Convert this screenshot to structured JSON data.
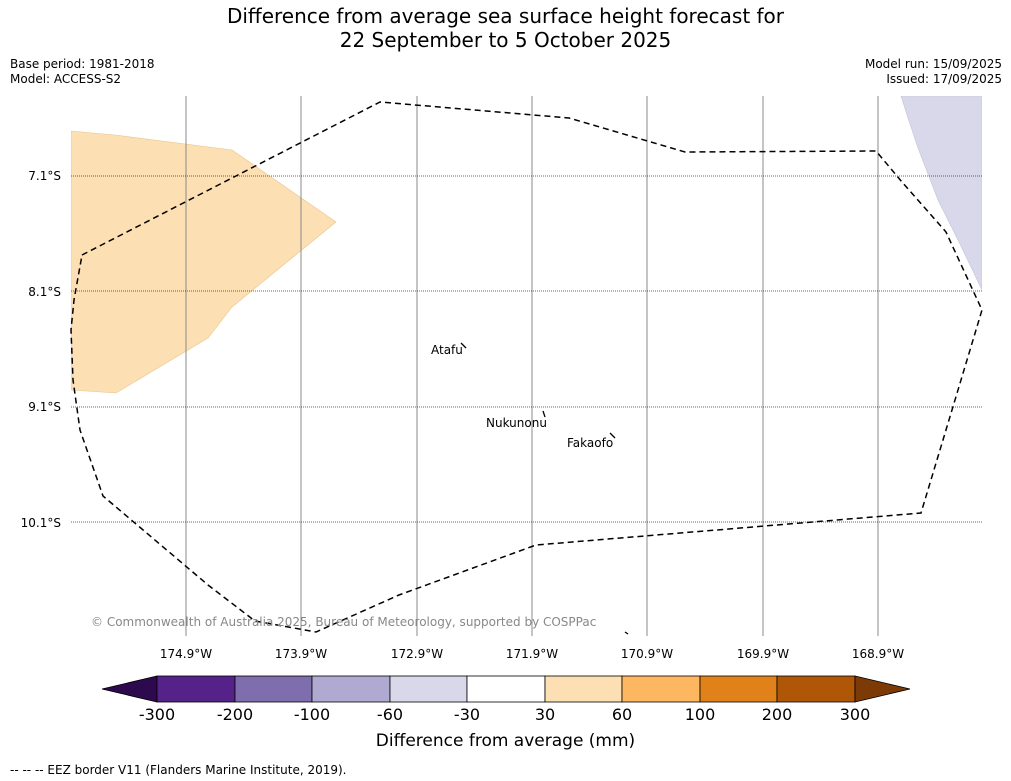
{
  "header": {
    "title_line1": "Difference from average sea surface height forecast for",
    "title_line2": "22 September to 5 October 2025",
    "base_period": "Base period: 1981-2018",
    "model": "Model: ACCESS-S2",
    "model_run": "Model run: 15/09/2025",
    "issued": "Issued: 17/09/2025"
  },
  "map": {
    "lat_labels": [
      "7.1°S",
      "8.1°S",
      "9.1°S",
      "10.1°S"
    ],
    "lon_labels": [
      "174.9°W",
      "173.9°W",
      "172.9°W",
      "171.9°W",
      "170.9°W",
      "169.9°W",
      "168.9°W"
    ],
    "places": [
      "Atafu",
      "Nukunonu",
      "Fakaofo"
    ],
    "copyright": "© Commonwealth of Australia 2025, Bureau of Meteorology, supported by COSPPac",
    "regions": [
      {
        "name": "positive-anomaly-region",
        "range": "30 to 60",
        "color": "#fddfb4"
      },
      {
        "name": "negative-anomaly-region",
        "range": "-60 to -30",
        "color": "#d8d8ea"
      }
    ]
  },
  "colorbar": {
    "tick_labels": [
      "-300",
      "-200",
      "-100",
      "-60",
      "-30",
      "30",
      "60",
      "100",
      "200",
      "300"
    ],
    "colors": [
      "#2d0a4d",
      "#55228a",
      "#7f6ead",
      "#b0a9d2",
      "#d8d8ea",
      "#ffffff",
      "#fddfb4",
      "#fdb760",
      "#e08219",
      "#b05607",
      "#7b3a06"
    ],
    "label": "Difference from average (mm)"
  },
  "footer": {
    "legend": "--  --  -- EEZ border V11 (Flanders Marine Institute, 2019)."
  }
}
